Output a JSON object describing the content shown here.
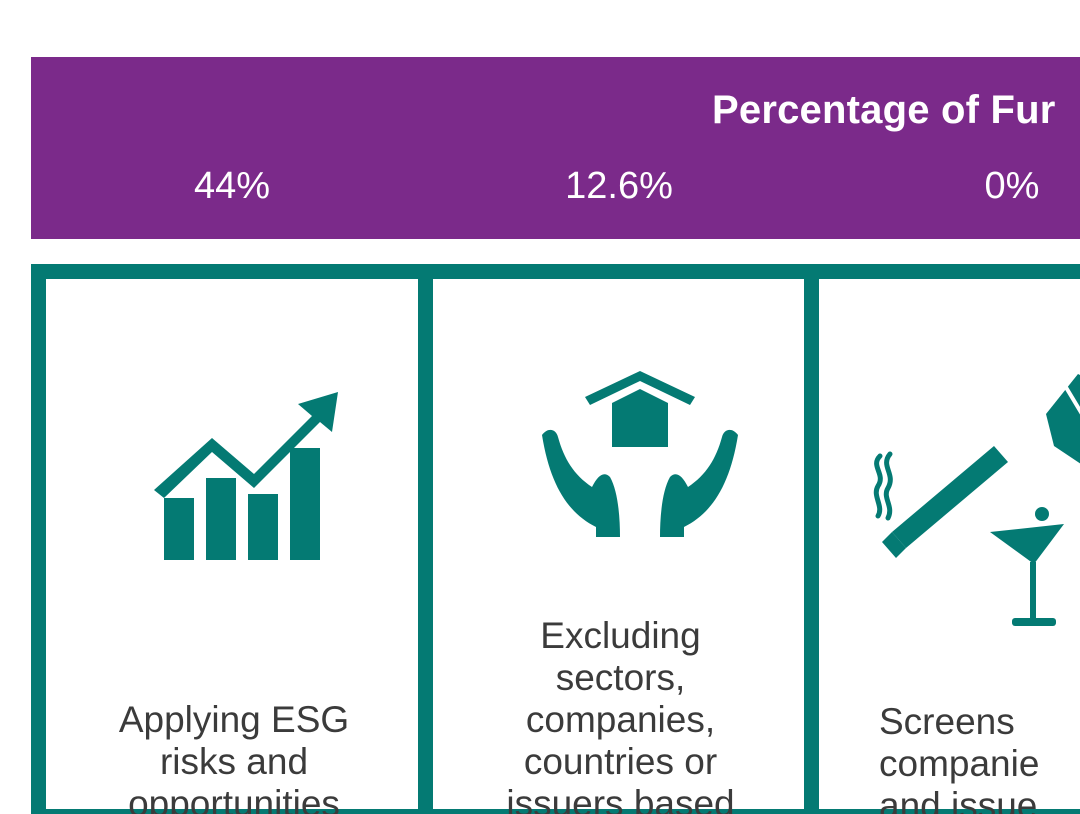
{
  "banner": {
    "title": "Percentage of Fur",
    "percentages": [
      "44%",
      "12.6%",
      "0%"
    ],
    "background_color": "#7b2a8a"
  },
  "panels": [
    {
      "icon": "growth-chart-icon",
      "lines": [
        "Applying ESG",
        "risks and",
        "opportunities"
      ]
    },
    {
      "icon": "hands-protecting-house-icon",
      "lines": [
        "Excluding",
        "sectors,",
        "companies,",
        "countries or",
        "issuers based"
      ]
    },
    {
      "icon": "vice-products-icon",
      "lines": [
        "Screens",
        "companie",
        "and issue"
      ]
    }
  ],
  "colors": {
    "panel_border": "#047a73",
    "icon": "#047a73",
    "text": "#3b3b3b"
  }
}
